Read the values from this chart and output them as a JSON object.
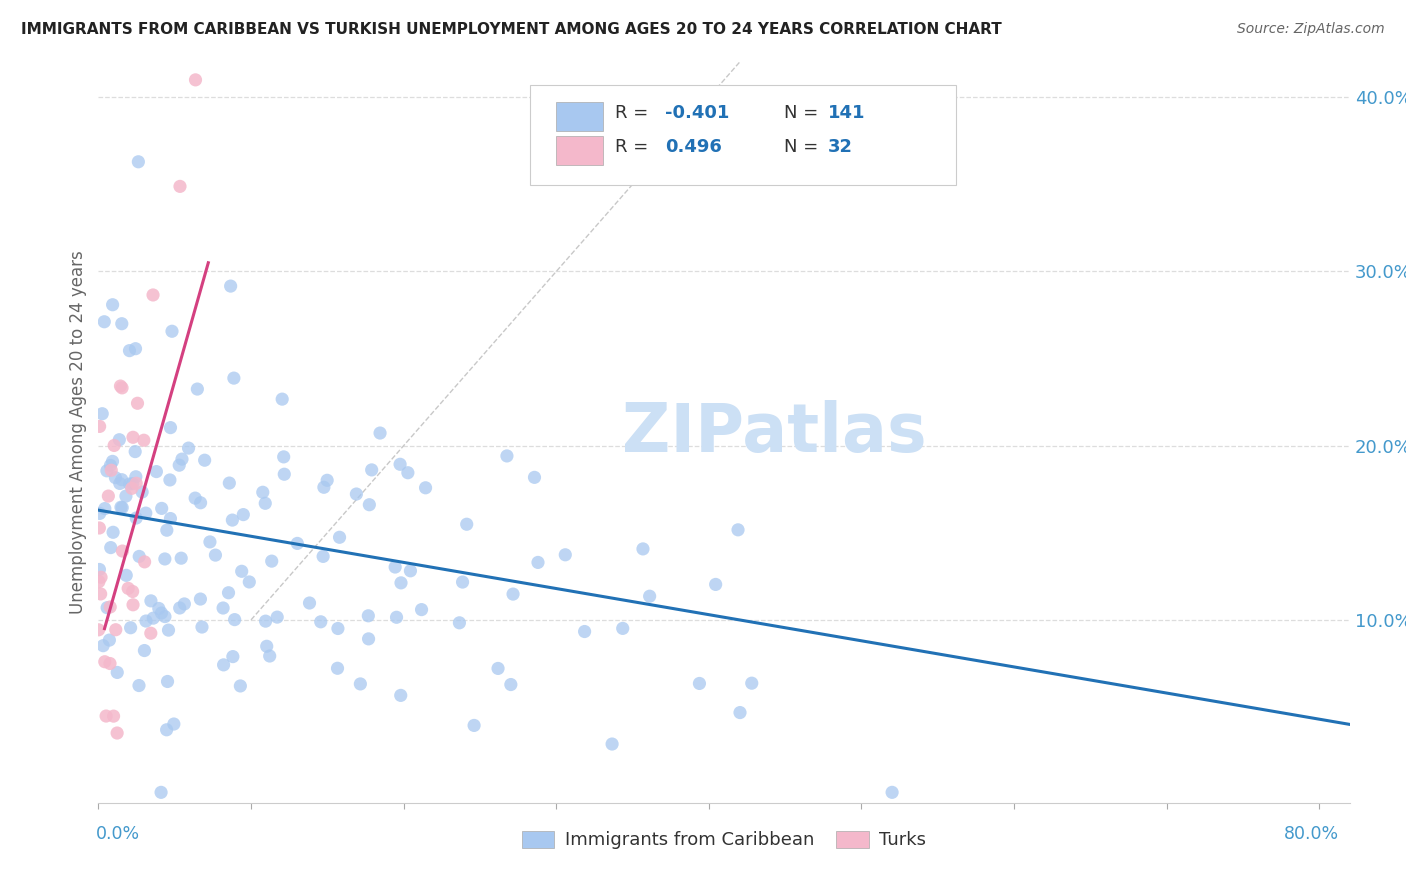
{
  "title": "IMMIGRANTS FROM CARIBBEAN VS TURKISH UNEMPLOYMENT AMONG AGES 20 TO 24 YEARS CORRELATION CHART",
  "source": "Source: ZipAtlas.com",
  "ylabel": "Unemployment Among Ages 20 to 24 years",
  "blue_color": "#a8c8f0",
  "blue_edge_color": "#7aaed6",
  "pink_color": "#f4b8cb",
  "pink_edge_color": "#e890aa",
  "blue_line_color": "#2171b5",
  "pink_line_color": "#d44080",
  "gray_dash_color": "#c8c8c8",
  "grid_color": "#dddddd",
  "background_color": "#ffffff",
  "title_color": "#222222",
  "axis_label_color": "#4499cc",
  "watermark_color": "#cce0f5",
  "xlim": [
    0.0,
    0.82
  ],
  "ylim": [
    -0.005,
    0.42
  ],
  "yticks": [
    0.0,
    0.1,
    0.2,
    0.3,
    0.4
  ],
  "ytick_labels": [
    "",
    "10.0%",
    "20.0%",
    "30.0%",
    "40.0%"
  ],
  "xticks": [
    0.0,
    0.1,
    0.2,
    0.3,
    0.4,
    0.5,
    0.6,
    0.7,
    0.8
  ],
  "blue_line_x0": 0.0,
  "blue_line_y0": 0.163,
  "blue_line_x1": 0.82,
  "blue_line_y1": 0.04,
  "pink_line_x0": 0.004,
  "pink_line_y0": 0.095,
  "pink_line_x1": 0.072,
  "pink_line_y1": 0.305,
  "gray_line_x0": 0.1,
  "gray_line_y0": 0.1,
  "gray_line_x1": 0.42,
  "gray_line_y1": 0.42
}
